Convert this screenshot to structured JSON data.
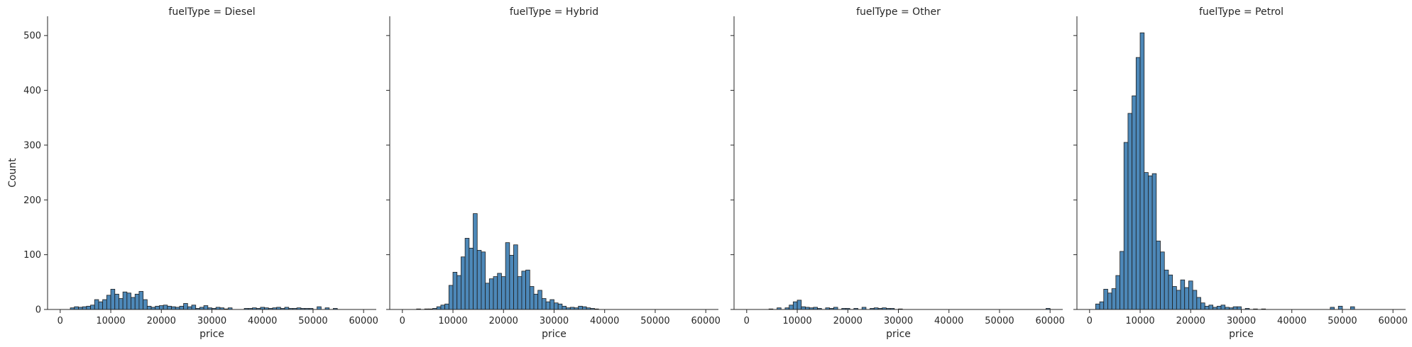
{
  "chart_data": {
    "type": "bar",
    "subtype": "histogram-facet-grid",
    "x_label": "price",
    "y_label": "Count",
    "xlim": [
      -2500,
      62500
    ],
    "ylim": [
      0,
      530
    ],
    "x_ticks": [
      0,
      10000,
      20000,
      30000,
      40000,
      50000,
      60000
    ],
    "y_ticks": [
      0,
      100,
      200,
      300,
      400,
      500
    ],
    "sharey": true,
    "bin_width": 800,
    "bar_color": "#3a7bb0",
    "bar_edge_color": "#1f1f1f",
    "facets": [
      {
        "title": "fuelType = Diesel",
        "bins": [
          [
            2000,
            3
          ],
          [
            2800,
            5
          ],
          [
            3600,
            4
          ],
          [
            4400,
            5
          ],
          [
            5200,
            6
          ],
          [
            6000,
            8
          ],
          [
            6800,
            18
          ],
          [
            7600,
            14
          ],
          [
            8400,
            18
          ],
          [
            9200,
            26
          ],
          [
            10000,
            37
          ],
          [
            10800,
            28
          ],
          [
            11600,
            20
          ],
          [
            12400,
            32
          ],
          [
            13200,
            30
          ],
          [
            14000,
            22
          ],
          [
            14800,
            28
          ],
          [
            15600,
            33
          ],
          [
            16400,
            18
          ],
          [
            17200,
            6
          ],
          [
            18000,
            4
          ],
          [
            18800,
            6
          ],
          [
            19600,
            7
          ],
          [
            20400,
            8
          ],
          [
            21200,
            6
          ],
          [
            22000,
            5
          ],
          [
            22800,
            4
          ],
          [
            23600,
            6
          ],
          [
            24400,
            11
          ],
          [
            25200,
            5
          ],
          [
            26000,
            8
          ],
          [
            26800,
            2
          ],
          [
            27600,
            4
          ],
          [
            28400,
            7
          ],
          [
            29200,
            3
          ],
          [
            30000,
            2
          ],
          [
            30800,
            4
          ],
          [
            31600,
            3
          ],
          [
            32400,
            1
          ],
          [
            33200,
            3
          ],
          [
            36400,
            2
          ],
          [
            37200,
            2
          ],
          [
            38000,
            3
          ],
          [
            38800,
            2
          ],
          [
            39600,
            4
          ],
          [
            40400,
            3
          ],
          [
            41200,
            2
          ],
          [
            42000,
            3
          ],
          [
            42800,
            4
          ],
          [
            43600,
            2
          ],
          [
            44400,
            4
          ],
          [
            45200,
            2
          ],
          [
            46000,
            2
          ],
          [
            46800,
            3
          ],
          [
            47600,
            2
          ],
          [
            48400,
            2
          ],
          [
            49200,
            2
          ],
          [
            50800,
            5
          ],
          [
            52400,
            3
          ],
          [
            54000,
            2
          ]
        ]
      },
      {
        "title": "fuelType = Hybrid",
        "bins": [
          [
            2800,
            1
          ],
          [
            4400,
            1
          ],
          [
            5200,
            1
          ],
          [
            6000,
            2
          ],
          [
            6800,
            5
          ],
          [
            7600,
            8
          ],
          [
            8400,
            10
          ],
          [
            9200,
            44
          ],
          [
            10000,
            68
          ],
          [
            10800,
            62
          ],
          [
            11600,
            96
          ],
          [
            12400,
            130
          ],
          [
            13200,
            112
          ],
          [
            14000,
            175
          ],
          [
            14800,
            108
          ],
          [
            15600,
            105
          ],
          [
            16400,
            48
          ],
          [
            17200,
            56
          ],
          [
            18000,
            60
          ],
          [
            18800,
            66
          ],
          [
            19600,
            60
          ],
          [
            20400,
            122
          ],
          [
            21200,
            99
          ],
          [
            22000,
            118
          ],
          [
            22800,
            60
          ],
          [
            23600,
            70
          ],
          [
            24400,
            72
          ],
          [
            25200,
            42
          ],
          [
            26000,
            28
          ],
          [
            26800,
            35
          ],
          [
            27600,
            20
          ],
          [
            28400,
            14
          ],
          [
            29200,
            18
          ],
          [
            30000,
            12
          ],
          [
            30800,
            10
          ],
          [
            31600,
            6
          ],
          [
            32400,
            3
          ],
          [
            33200,
            4
          ],
          [
            34000,
            3
          ],
          [
            34800,
            6
          ],
          [
            35600,
            5
          ],
          [
            36400,
            3
          ],
          [
            37200,
            2
          ],
          [
            38000,
            1
          ]
        ]
      },
      {
        "title": "fuelType = Other",
        "bins": [
          [
            4400,
            1
          ],
          [
            6000,
            3
          ],
          [
            7600,
            3
          ],
          [
            8400,
            8
          ],
          [
            9200,
            14
          ],
          [
            10000,
            17
          ],
          [
            10800,
            5
          ],
          [
            11600,
            4
          ],
          [
            12400,
            3
          ],
          [
            13200,
            4
          ],
          [
            14000,
            2
          ],
          [
            15600,
            3
          ],
          [
            16400,
            2
          ],
          [
            17200,
            4
          ],
          [
            18800,
            2
          ],
          [
            19600,
            2
          ],
          [
            21200,
            2
          ],
          [
            22800,
            4
          ],
          [
            24400,
            2
          ],
          [
            25200,
            3
          ],
          [
            26000,
            2
          ],
          [
            26800,
            3
          ],
          [
            27600,
            2
          ],
          [
            28400,
            2
          ],
          [
            30000,
            1
          ],
          [
            59200,
            2
          ]
        ]
      },
      {
        "title": "fuelType = Petrol",
        "bins": [
          [
            1200,
            10
          ],
          [
            2000,
            14
          ],
          [
            2800,
            37
          ],
          [
            3600,
            30
          ],
          [
            4400,
            38
          ],
          [
            5200,
            62
          ],
          [
            6000,
            106
          ],
          [
            6800,
            305
          ],
          [
            7600,
            358
          ],
          [
            8400,
            390
          ],
          [
            9200,
            460
          ],
          [
            10000,
            505
          ],
          [
            10800,
            250
          ],
          [
            11600,
            244
          ],
          [
            12400,
            248
          ],
          [
            13200,
            125
          ],
          [
            14000,
            105
          ],
          [
            14800,
            72
          ],
          [
            15600,
            63
          ],
          [
            16400,
            42
          ],
          [
            17200,
            35
          ],
          [
            18000,
            54
          ],
          [
            18800,
            40
          ],
          [
            19600,
            52
          ],
          [
            20400,
            35
          ],
          [
            21200,
            22
          ],
          [
            22000,
            12
          ],
          [
            22800,
            6
          ],
          [
            23600,
            8
          ],
          [
            24400,
            4
          ],
          [
            25200,
            6
          ],
          [
            26000,
            8
          ],
          [
            26800,
            4
          ],
          [
            27600,
            3
          ],
          [
            28400,
            5
          ],
          [
            29200,
            5
          ],
          [
            30800,
            2
          ],
          [
            32400,
            1
          ],
          [
            34000,
            1
          ],
          [
            47600,
            4
          ],
          [
            49200,
            6
          ],
          [
            51600,
            5
          ]
        ]
      }
    ]
  }
}
